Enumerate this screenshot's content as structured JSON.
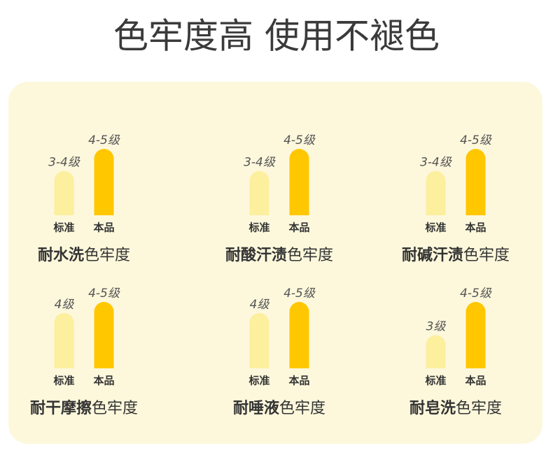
{
  "header": {
    "title": "色牢度高 使用不褪色"
  },
  "chart_data": [
    {
      "type": "bar",
      "title": [
        "耐水洗",
        "色牢度"
      ],
      "categories": [
        "标准",
        "本品"
      ],
      "values": [
        3.5,
        4.5
      ],
      "value_labels": [
        "3-4级",
        "4-5级"
      ],
      "colors": [
        "#fcef9e",
        "#ffc700"
      ],
      "ylim": [
        1.5,
        4.5
      ]
    },
    {
      "type": "bar",
      "title": [
        "耐酸汗渍",
        "色牢度"
      ],
      "categories": [
        "标准",
        "本品"
      ],
      "values": [
        3.5,
        4.5
      ],
      "value_labels": [
        "3-4级",
        "4-5级"
      ],
      "colors": [
        "#fcef9e",
        "#ffc700"
      ],
      "ylim": [
        1.5,
        4.5
      ]
    },
    {
      "type": "bar",
      "title": [
        "耐碱汗渍",
        "色牢度"
      ],
      "categories": [
        "标准",
        "本品"
      ],
      "values": [
        3.5,
        4.5
      ],
      "value_labels": [
        "3-4级",
        "4-5级"
      ],
      "colors": [
        "#fcef9e",
        "#ffc700"
      ],
      "ylim": [
        1.5,
        4.5
      ]
    },
    {
      "type": "bar",
      "title": [
        "耐干摩擦",
        "色牢度"
      ],
      "categories": [
        "标准",
        "本品"
      ],
      "values": [
        4,
        4.5
      ],
      "value_labels": [
        "4级",
        "4-5级"
      ],
      "colors": [
        "#fcef9e",
        "#ffc700"
      ],
      "ylim": [
        1.5,
        4.5
      ]
    },
    {
      "type": "bar",
      "title": [
        "耐唾液",
        "色牢度"
      ],
      "categories": [
        "标准",
        "本品"
      ],
      "values": [
        4,
        4.5
      ],
      "value_labels": [
        "4级",
        "4-5级"
      ],
      "colors": [
        "#fcef9e",
        "#ffc700"
      ],
      "ylim": [
        1.5,
        4.5
      ]
    },
    {
      "type": "bar",
      "title": [
        "耐皂洗",
        "色牢度"
      ],
      "categories": [
        "标准",
        "本品"
      ],
      "values": [
        3,
        4.5
      ],
      "value_labels": [
        "3级",
        "4-5级"
      ],
      "colors": [
        "#fcef9e",
        "#ffc700"
      ],
      "ylim": [
        1.5,
        4.5
      ]
    }
  ]
}
